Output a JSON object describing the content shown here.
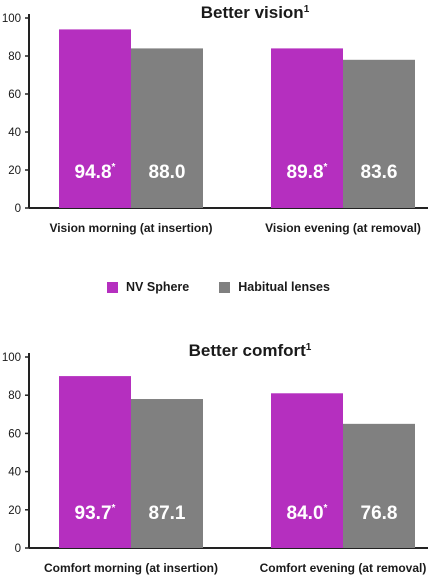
{
  "colors": {
    "series_a": "#b52fbf",
    "series_b": "#808080",
    "axis": "#222222",
    "value_text": "#ffffff"
  },
  "legend": {
    "items": [
      "NV Sphere",
      "Habitual lenses"
    ]
  },
  "chart_data": [
    {
      "type": "bar",
      "title": "Better vision",
      "title_superscript": "1",
      "categories": [
        "Vision morning (at insertion)",
        "Vision evening (at removal)"
      ],
      "series": [
        {
          "name": "NV Sphere",
          "values": [
            94.8,
            89.8
          ],
          "labels": [
            "94.8",
            "89.8"
          ],
          "marks": [
            "*",
            "*"
          ]
        },
        {
          "name": "Habitual lenses",
          "values": [
            88.0,
            83.6
          ],
          "labels": [
            "88.0",
            "83.6"
          ],
          "marks": [
            "",
            ""
          ]
        }
      ],
      "bar_heights": [
        [
          94,
          84
        ],
        [
          84,
          78
        ]
      ],
      "ylim": [
        0,
        100
      ],
      "yticks": [
        0,
        20,
        40,
        60,
        80,
        100
      ],
      "grid": false,
      "legend_position": "below"
    },
    {
      "type": "bar",
      "title": "Better comfort",
      "title_superscript": "1",
      "categories": [
        "Comfort morning (at insertion)",
        "Comfort evening (at removal)"
      ],
      "series": [
        {
          "name": "NV Sphere",
          "values": [
            93.7,
            84.0
          ],
          "labels": [
            "93.7",
            "84.0"
          ],
          "marks": [
            "*",
            "*"
          ]
        },
        {
          "name": "Habitual lenses",
          "values": [
            87.1,
            76.8
          ],
          "labels": [
            "87.1",
            "76.8"
          ],
          "marks": [
            "",
            ""
          ]
        }
      ],
      "bar_heights": [
        [
          90,
          78
        ],
        [
          81,
          65
        ]
      ],
      "ylim": [
        0,
        100
      ],
      "yticks": [
        0,
        20,
        40,
        60,
        80,
        100
      ],
      "grid": false,
      "legend_position": "above"
    }
  ]
}
